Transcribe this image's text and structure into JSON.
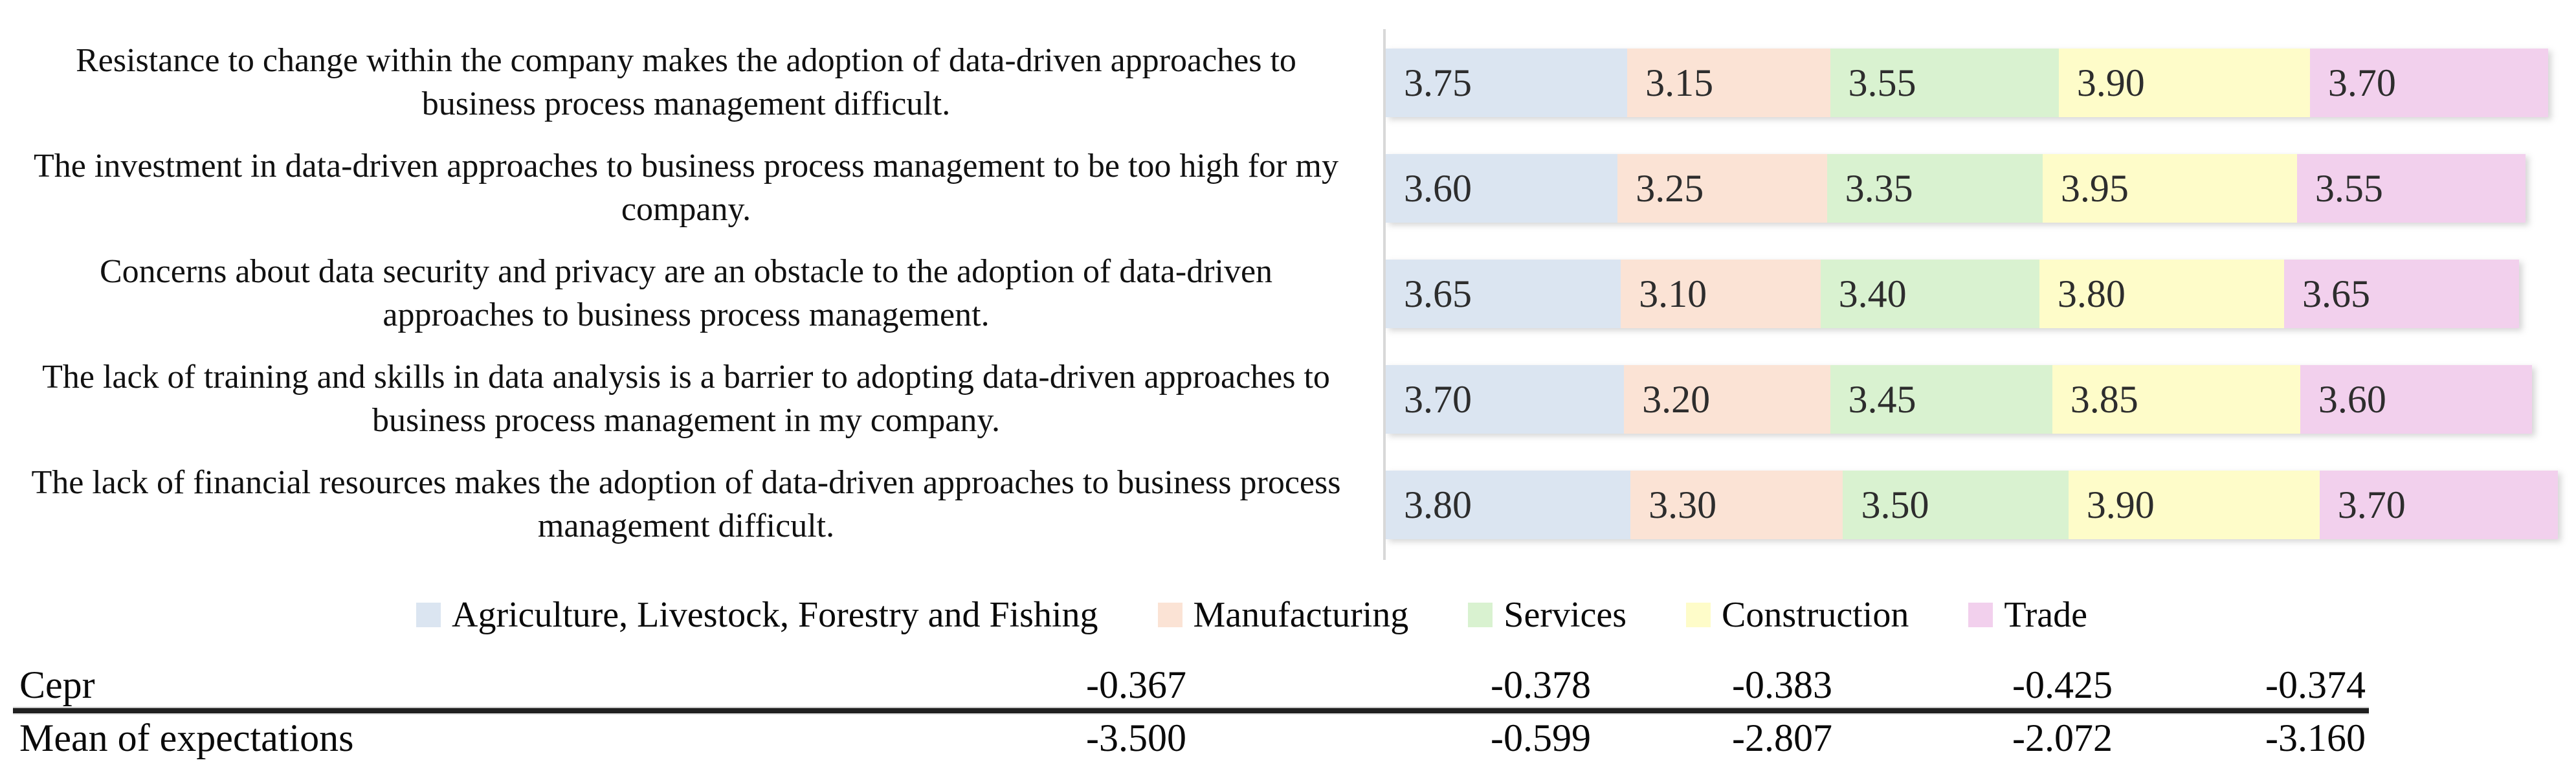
{
  "chart_data": {
    "type": "bar",
    "orientation": "horizontal-stacked",
    "title": "",
    "xlabel": "",
    "ylabel": "",
    "grid": false,
    "legend_position": "bottom",
    "value_labels_shown": true,
    "axis_line_color": "#d8d8d8",
    "categories": [
      "Resistance to change within the company makes the adoption of data-driven approaches to business process management difficult.",
      "The investment in data-driven approaches to business process management to be too high for my company.",
      "Concerns about data security and privacy are an obstacle to the adoption of data-driven approaches to business process management.",
      "The lack of training and skills in data analysis is a barrier to adopting data-driven approaches to business process management in my company.",
      "The lack of financial resources makes the adoption of data-driven approaches to business process management difficult."
    ],
    "series": [
      {
        "name": "Agriculture, Livestock, Forestry and Fishing",
        "color": "#dbe5f1",
        "values": [
          "3.75",
          "3.60",
          "3.65",
          "3.70",
          "3.80"
        ]
      },
      {
        "name": "Manufacturing",
        "color": "#fbe3d5",
        "values": [
          "3.15",
          "3.25",
          "3.10",
          "3.20",
          "3.30"
        ]
      },
      {
        "name": "Services",
        "color": "#d9f2d0",
        "values": [
          "3.55",
          "3.35",
          "3.40",
          "3.45",
          "3.50"
        ]
      },
      {
        "name": "Construction",
        "color": "#fefcc9",
        "values": [
          "3.90",
          "3.95",
          "3.80",
          "3.85",
          "3.90"
        ]
      },
      {
        "name": "Trade",
        "color": "#f2d0ed",
        "values": [
          "3.70",
          "3.55",
          "3.65",
          "3.60",
          "3.70"
        ]
      }
    ]
  },
  "table": {
    "rows": [
      {
        "label": "Cepr",
        "values": [
          "-0.367",
          "-0.378",
          "-0.383",
          "-0.425",
          "-0.374"
        ]
      },
      {
        "label": "Mean of expectations",
        "values": [
          "-3.500",
          "-0.599",
          "-2.807",
          "-2.072",
          "-3.160"
        ]
      }
    ]
  }
}
